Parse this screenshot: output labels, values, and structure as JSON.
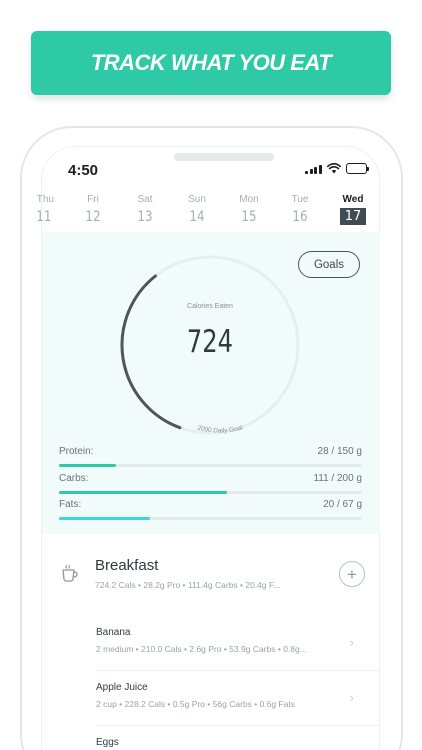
{
  "banner": {
    "title": "TRACK WHAT YOU EAT"
  },
  "status": {
    "time": "4:50"
  },
  "days": [
    {
      "name": "Thu",
      "date": "11",
      "partial": true
    },
    {
      "name": "Fri",
      "date": "12"
    },
    {
      "name": "Sat",
      "date": "13"
    },
    {
      "name": "Sun",
      "date": "14"
    },
    {
      "name": "Mon",
      "date": "15"
    },
    {
      "name": "Tue",
      "date": "16"
    },
    {
      "name": "Wed",
      "date": "17",
      "active": true
    }
  ],
  "summary": {
    "goals_label": "Goals",
    "calories_label": "Calories Eaten",
    "calories_value": "724",
    "goal_label": "2000 Daily Goal",
    "progress_fraction": 0.362,
    "colors": {
      "ring": "#4b565d",
      "ring_track": "#e3f0ee",
      "panel": "#f1fbfa"
    }
  },
  "macros": [
    {
      "label": "Protein:",
      "value": "28 / 150 g",
      "fraction": 0.187,
      "color": "#2ecaa6"
    },
    {
      "label": "Carbs:",
      "value": "111 / 200 g",
      "fraction": 0.555,
      "color": "#2ecaa6"
    },
    {
      "label": "Fats:",
      "value": "20 / 67 g",
      "fraction": 0.3,
      "color": "#3fd3e0"
    }
  ],
  "meal": {
    "title": "Breakfast",
    "summary": "724.2 Cals • 28.2g Pro • 111.4g Carbs • 20.4g F...",
    "icon": "coffee-cup-icon",
    "add_icon": "plus-icon",
    "items": [
      {
        "name": "Banana",
        "desc": "2 medium • 210.0 Cals • 2.6g Pro • 53.9g Carbs • 0.8g..."
      },
      {
        "name": "Apple Juice",
        "desc": "2 cup • 228.2 Cals • 0.5g Pro • 56g Carbs • 0.6g Fats"
      },
      {
        "name": "Eggs",
        "desc": ""
      }
    ]
  }
}
